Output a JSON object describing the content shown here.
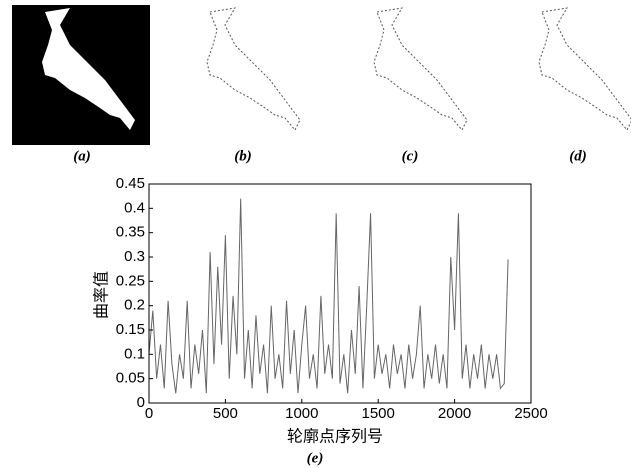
{
  "panels": [
    {
      "label": "(a)"
    },
    {
      "label": "(b)"
    },
    {
      "label": "(c)"
    },
    {
      "label": "(d)"
    }
  ],
  "chart_data": {
    "type": "line",
    "caption": "(e)",
    "x_label": "轮廓点序列号",
    "y_label": "曲率值",
    "xlim": [
      0,
      2500
    ],
    "xticks": [
      0,
      500,
      1000,
      1500,
      2000,
      2500
    ],
    "ylim": [
      0,
      0.45
    ],
    "yticks": [
      0,
      0.05,
      0.1,
      0.15,
      0.2,
      0.25,
      0.3,
      0.35,
      0.4,
      0.45
    ],
    "x": [
      0,
      25,
      50,
      75,
      100,
      125,
      150,
      175,
      200,
      225,
      250,
      275,
      300,
      325,
      350,
      375,
      400,
      425,
      450,
      475,
      500,
      525,
      550,
      575,
      600,
      625,
      650,
      675,
      700,
      725,
      750,
      775,
      800,
      825,
      850,
      875,
      900,
      925,
      950,
      975,
      1000,
      1025,
      1050,
      1075,
      1100,
      1125,
      1150,
      1175,
      1200,
      1225,
      1250,
      1275,
      1300,
      1325,
      1350,
      1375,
      1400,
      1425,
      1450,
      1475,
      1500,
      1525,
      1550,
      1575,
      1600,
      1625,
      1650,
      1675,
      1700,
      1725,
      1750,
      1775,
      1800,
      1825,
      1850,
      1875,
      1900,
      1925,
      1950,
      1975,
      2000,
      2025,
      2050,
      2075,
      2100,
      2125,
      2150,
      2175,
      2200,
      2225,
      2250,
      2275,
      2300,
      2325,
      2350
    ],
    "series": [
      {
        "color": "#666666",
        "values": [
          0.1,
          0.19,
          0.05,
          0.12,
          0.03,
          0.21,
          0.08,
          0.02,
          0.1,
          0.05,
          0.21,
          0.03,
          0.12,
          0.06,
          0.15,
          0.02,
          0.31,
          0.08,
          0.28,
          0.12,
          0.345,
          0.05,
          0.22,
          0.1,
          0.42,
          0.05,
          0.15,
          0.03,
          0.18,
          0.06,
          0.12,
          0.02,
          0.2,
          0.05,
          0.1,
          0.03,
          0.21,
          0.06,
          0.15,
          0.02,
          0.12,
          0.2,
          0.05,
          0.1,
          0.03,
          0.22,
          0.06,
          0.12,
          0.05,
          0.39,
          0.04,
          0.1,
          0.02,
          0.15,
          0.06,
          0.24,
          0.03,
          0.2,
          0.39,
          0.05,
          0.12,
          0.06,
          0.1,
          0.03,
          0.12,
          0.06,
          0.1,
          0.03,
          0.12,
          0.05,
          0.1,
          0.2,
          0.03,
          0.1,
          0.05,
          0.12,
          0.04,
          0.1,
          0.03,
          0.3,
          0.15,
          0.39,
          0.05,
          0.12,
          0.03,
          0.1,
          0.05,
          0.12,
          0.03,
          0.1,
          0.05,
          0.1,
          0.03,
          0.04,
          0.295
        ]
      }
    ]
  }
}
